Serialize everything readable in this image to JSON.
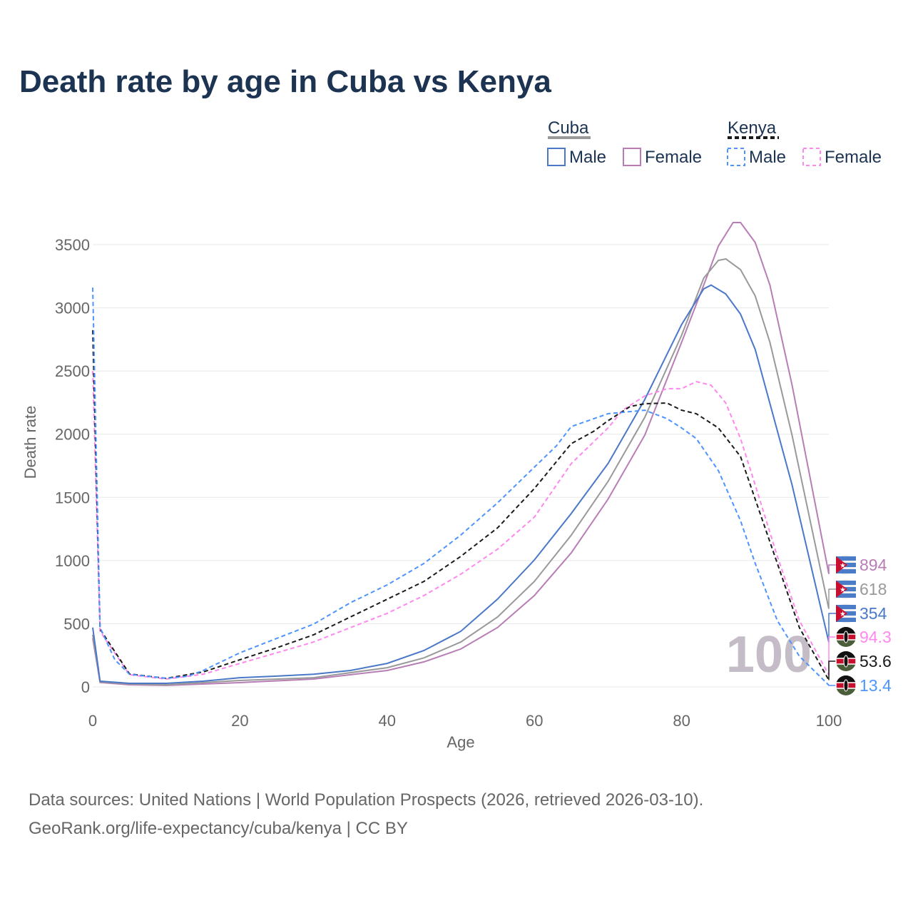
{
  "chart_data": {
    "type": "line",
    "title": "Death rate by age in Cuba vs Kenya",
    "xlabel": "Age",
    "ylabel": "Death rate",
    "xlim": [
      0,
      100
    ],
    "ylim": [
      0,
      3700
    ],
    "xticks": [
      "0",
      "20",
      "40",
      "60",
      "80",
      "100"
    ],
    "yticks": [
      "0",
      "500",
      "1000",
      "1500",
      "2000",
      "2500",
      "3000",
      "3500"
    ],
    "grid": true,
    "watermark": "100",
    "legend": {
      "groups": [
        {
          "name": "Cuba",
          "items": [
            "Male",
            "Female"
          ]
        },
        {
          "name": "Kenya",
          "items": [
            "Male",
            "Female"
          ]
        }
      ],
      "placement": "top-right"
    },
    "series": [
      {
        "name": "Cuba Female",
        "color": "#b87db5",
        "dash": false,
        "end_label": "894",
        "flag": "cuba",
        "x": [
          0,
          1,
          5,
          10,
          20,
          30,
          40,
          45,
          50,
          55,
          60,
          65,
          70,
          75,
          80,
          83,
          85,
          87,
          88,
          90,
          92,
          95,
          100
        ],
        "y": [
          385,
          35,
          17,
          12,
          34,
          62,
          130,
          198,
          300,
          470,
          723,
          1060,
          1485,
          1993,
          2727,
          3180,
          3490,
          3675,
          3675,
          3517,
          3180,
          2390,
          894
        ]
      },
      {
        "name": "Cuba Total",
        "color": "#999999",
        "dash": false,
        "end_label": "618",
        "flag": "cuba",
        "x": [
          0,
          1,
          5,
          10,
          20,
          30,
          40,
          45,
          50,
          55,
          60,
          65,
          70,
          75,
          80,
          83,
          85,
          86,
          88,
          90,
          92,
          95,
          100
        ],
        "y": [
          412,
          40,
          23,
          17,
          51,
          73,
          152,
          230,
          355,
          553,
          835,
          1200,
          1625,
          2134,
          2783,
          3235,
          3376,
          3387,
          3302,
          3094,
          2727,
          1993,
          618
        ]
      },
      {
        "name": "Cuba Male",
        "color": "#4a78c8",
        "dash": false,
        "end_label": "354",
        "flag": "cuba",
        "x": [
          0,
          1,
          5,
          10,
          15,
          20,
          25,
          30,
          35,
          40,
          45,
          50,
          55,
          60,
          65,
          70,
          75,
          80,
          83,
          84,
          86,
          88,
          90,
          95,
          100
        ],
        "y": [
          470,
          45,
          28,
          28,
          45,
          73,
          85,
          100,
          130,
          186,
          288,
          440,
          695,
          1005,
          1372,
          1767,
          2275,
          2868,
          3150,
          3180,
          3110,
          2950,
          2670,
          1600,
          354
        ]
      },
      {
        "name": "Kenya Female",
        "color": "#ff88ee",
        "dash": true,
        "end_label": "94.3",
        "flag": "kenya",
        "x": [
          0,
          1,
          5,
          10,
          15,
          20,
          25,
          30,
          35,
          40,
          45,
          50,
          55,
          60,
          65,
          70,
          72,
          75,
          78,
          80,
          82,
          84,
          86,
          88,
          90,
          93,
          96,
          100
        ],
        "y": [
          2500,
          440,
          96,
          62,
          100,
          186,
          270,
          355,
          469,
          582,
          723,
          892,
          1090,
          1344,
          1767,
          2049,
          2190,
          2303,
          2360,
          2360,
          2416,
          2388,
          2247,
          1965,
          1598,
          1033,
          525,
          94.3
        ]
      },
      {
        "name": "Kenya Total",
        "color": "#1a1a1a",
        "dash": true,
        "end_label": "53.6",
        "flag": "kenya",
        "x": [
          0,
          1,
          5,
          10,
          15,
          20,
          25,
          30,
          35,
          40,
          45,
          50,
          55,
          60,
          65,
          68,
          70,
          73,
          75,
          78,
          80,
          82,
          85,
          88,
          90,
          93,
          96,
          100
        ],
        "y": [
          2823,
          457,
          102,
          68,
          118,
          215,
          310,
          412,
          553,
          694,
          835,
          1033,
          1259,
          1570,
          1925,
          2021,
          2106,
          2219,
          2241,
          2247,
          2190,
          2162,
          2049,
          1823,
          1485,
          977,
          469,
          53.6
        ]
      },
      {
        "name": "Kenya Male",
        "color": "#4d94ff",
        "dash": true,
        "end_label": "13.4",
        "flag": "kenya",
        "x": [
          0,
          1,
          3,
          5,
          10,
          13,
          15,
          20,
          25,
          30,
          35,
          40,
          45,
          50,
          55,
          60,
          63,
          65,
          70,
          75,
          78,
          80,
          82,
          85,
          88,
          90,
          93,
          96,
          100
        ],
        "y": [
          3160,
          470,
          215,
          100,
          68,
          85,
          130,
          270,
          384,
          497,
          666,
          807,
          977,
          1202,
          1457,
          1739,
          1908,
          2060,
          2162,
          2190,
          2123,
          2049,
          1965,
          1711,
          1315,
          977,
          525,
          243,
          13.4
        ]
      }
    ]
  },
  "footer": {
    "line1": "Data sources: United Nations | World Population Prospects (2026, retrieved 2026-03-10).",
    "line2": "GeoRank.org/life-expectancy/cuba/kenya | CC BY"
  }
}
